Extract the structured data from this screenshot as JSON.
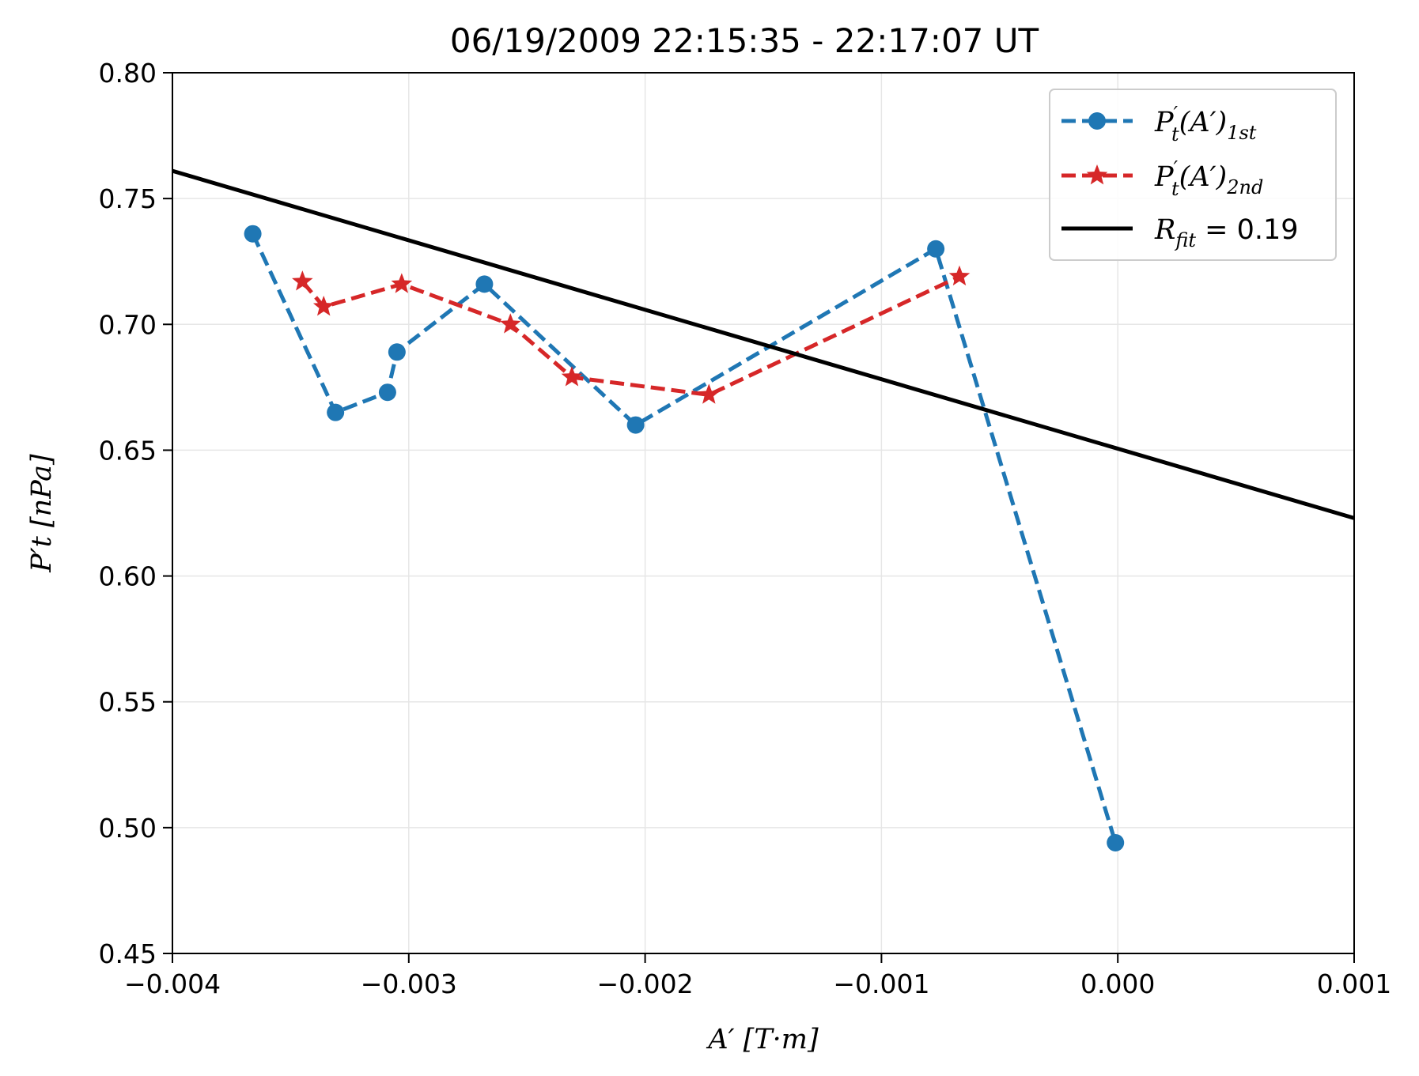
{
  "chart_data": {
    "type": "line",
    "title": "06/19/2009 22:15:35 - 22:17:07 UT",
    "xlabel": "A′ [T·m]",
    "ylabel": "P′t [nPa]",
    "xlim": [
      -0.004,
      0.001
    ],
    "ylim": [
      0.45,
      0.8
    ],
    "xticks": [
      -0.004,
      -0.003,
      -0.002,
      -0.001,
      0.0,
      0.001
    ],
    "xtick_labels": [
      "−0.004",
      "−0.003",
      "−0.002",
      "−0.001",
      "0.000",
      "0.001"
    ],
    "yticks": [
      0.45,
      0.5,
      0.55,
      0.6,
      0.65,
      0.7,
      0.75,
      0.8
    ],
    "ytick_labels": [
      "0.45",
      "0.50",
      "0.55",
      "0.60",
      "0.65",
      "0.70",
      "0.75",
      "0.80"
    ],
    "grid": true,
    "legend_position": "top-right",
    "series": [
      {
        "name": "P′t(A′)1st",
        "color": "#1f77b4",
        "linestyle": "dashed",
        "marker": "circle",
        "x": [
          -0.00366,
          -0.00331,
          -0.00309,
          -0.00305,
          -0.00268,
          -0.00204,
          -0.00077,
          -1e-05
        ],
        "y": [
          0.736,
          0.665,
          0.673,
          0.689,
          0.716,
          0.66,
          0.73,
          0.494
        ]
      },
      {
        "name": "P′t(A′)2nd",
        "color": "#d62728",
        "linestyle": "dashed",
        "marker": "star",
        "x": [
          -0.00345,
          -0.00336,
          -0.00303,
          -0.00257,
          -0.00231,
          -0.00173,
          -0.00067
        ],
        "y": [
          0.717,
          0.707,
          0.716,
          0.7,
          0.679,
          0.672,
          0.719
        ]
      },
      {
        "name": "Rfit = 0.19",
        "color": "#000000",
        "linestyle": "solid",
        "marker": "none",
        "x": [
          -0.004,
          0.001
        ],
        "y": [
          0.761,
          0.623
        ]
      }
    ]
  },
  "legend": [
    {
      "main": "P",
      "sup": "′",
      "sub": "t",
      "paren": "(A′)",
      "tail": "1st"
    },
    {
      "main": "P",
      "sup": "′",
      "sub": "t",
      "paren": "(A′)",
      "tail": "2nd"
    },
    {
      "main": "R",
      "sub": "fit",
      "rest": " = 0.19"
    }
  ]
}
